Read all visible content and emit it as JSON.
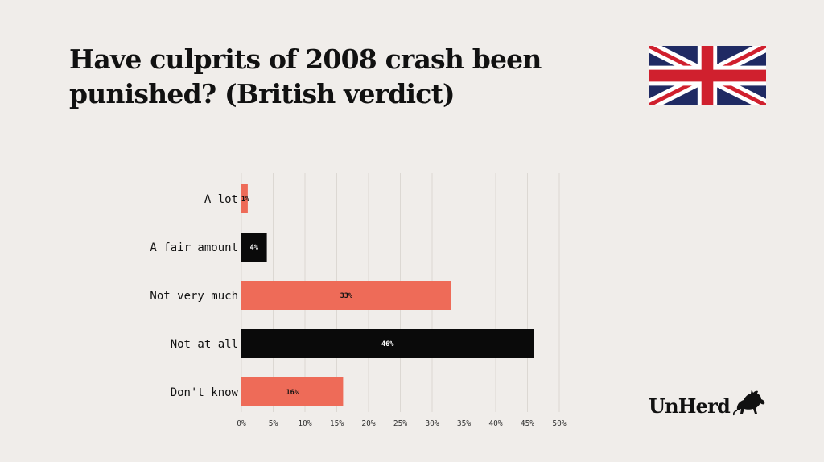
{
  "header": {
    "title": "Have culprits of 2008 crash been punished? (British verdict)"
  },
  "flag": {
    "icon": "union-jack-flag-icon"
  },
  "brand": {
    "name": "UnHerd",
    "icon": "bull-icon"
  },
  "colors": {
    "background": "#f0edea",
    "salmon": "#ee6b58",
    "black": "#0a0a0a",
    "grid": "#dcd8d3",
    "flag_blue": "#1f2a63",
    "flag_red": "#d0202e"
  },
  "chart_data": {
    "type": "bar",
    "orientation": "horizontal",
    "categories": [
      "A lot",
      "A  fair amount",
      "Not very much",
      "Not at all",
      "Don't know"
    ],
    "values": [
      1,
      4,
      33,
      46,
      16
    ],
    "data_labels": [
      "1%",
      "4%",
      "33%",
      "46%",
      "16%"
    ],
    "bar_colors": [
      "#ee6b58",
      "#0a0a0a",
      "#ee6b58",
      "#0a0a0a",
      "#ee6b58"
    ],
    "xticks": [
      "0%",
      "5%",
      "10%",
      "15%",
      "20%",
      "25%",
      "30%",
      "35%",
      "40%",
      "45%",
      "50%"
    ],
    "xlim": [
      0,
      50
    ],
    "title": "",
    "xlabel": "",
    "ylabel": "",
    "grid": true,
    "legend": "none"
  }
}
